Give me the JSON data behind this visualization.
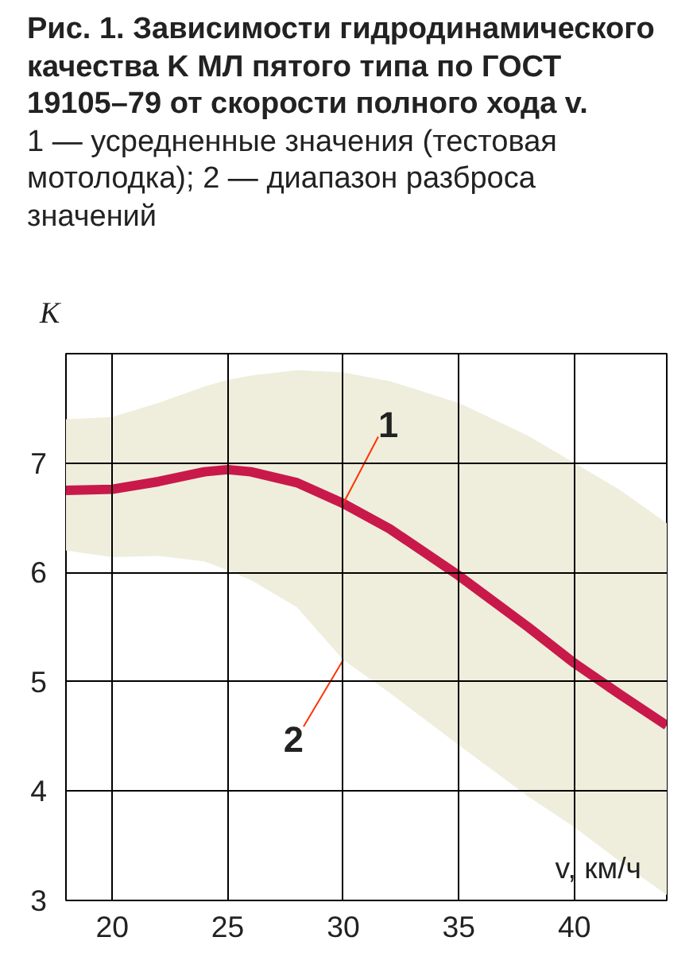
{
  "chart_data": {
    "type": "line",
    "title": "Рис. 1. Зависимости гидродинамического качества K МЛ пятого типа по ГОСТ 19105–79 от скорости полного хода v.",
    "subtitle": "1 — усредненные значения (тестовая мотолодка); 2 — диапазон разброса значений",
    "xlabel": "v, км/ч",
    "ylabel": "K",
    "x": [
      18,
      20,
      22,
      24,
      25,
      26,
      28,
      30,
      32,
      35,
      38,
      40,
      42,
      44
    ],
    "series": [
      {
        "color": "#c8194a",
        "values": [
          6.75,
          6.76,
          6.83,
          6.92,
          6.94,
          6.92,
          6.82,
          6.63,
          6.4,
          5.97,
          5.5,
          5.17,
          4.88,
          4.6
        ],
        "lower": [
          6.2,
          6.14,
          6.15,
          6.1,
          6.02,
          5.93,
          5.68,
          5.2,
          4.9,
          4.42,
          3.95,
          3.67,
          3.35,
          3.05
        ],
        "upper": [
          7.4,
          7.42,
          7.55,
          7.7,
          7.76,
          7.8,
          7.85,
          7.83,
          7.75,
          7.55,
          7.25,
          7.0,
          6.75,
          6.45
        ]
      }
    ],
    "annotations": [
      {
        "text": "1",
        "x": 30,
        "y": 6.63
      },
      {
        "text": "2",
        "x": 30,
        "y": 5.2
      }
    ],
    "color": "#efeedd",
    "xlim": [
      18,
      44
    ],
    "ylim": [
      3,
      8
    ],
    "xticks": [
      20,
      25,
      30,
      35,
      40
    ],
    "yticks": [
      3,
      4,
      5,
      6,
      7
    ],
    "grid": true
  }
}
